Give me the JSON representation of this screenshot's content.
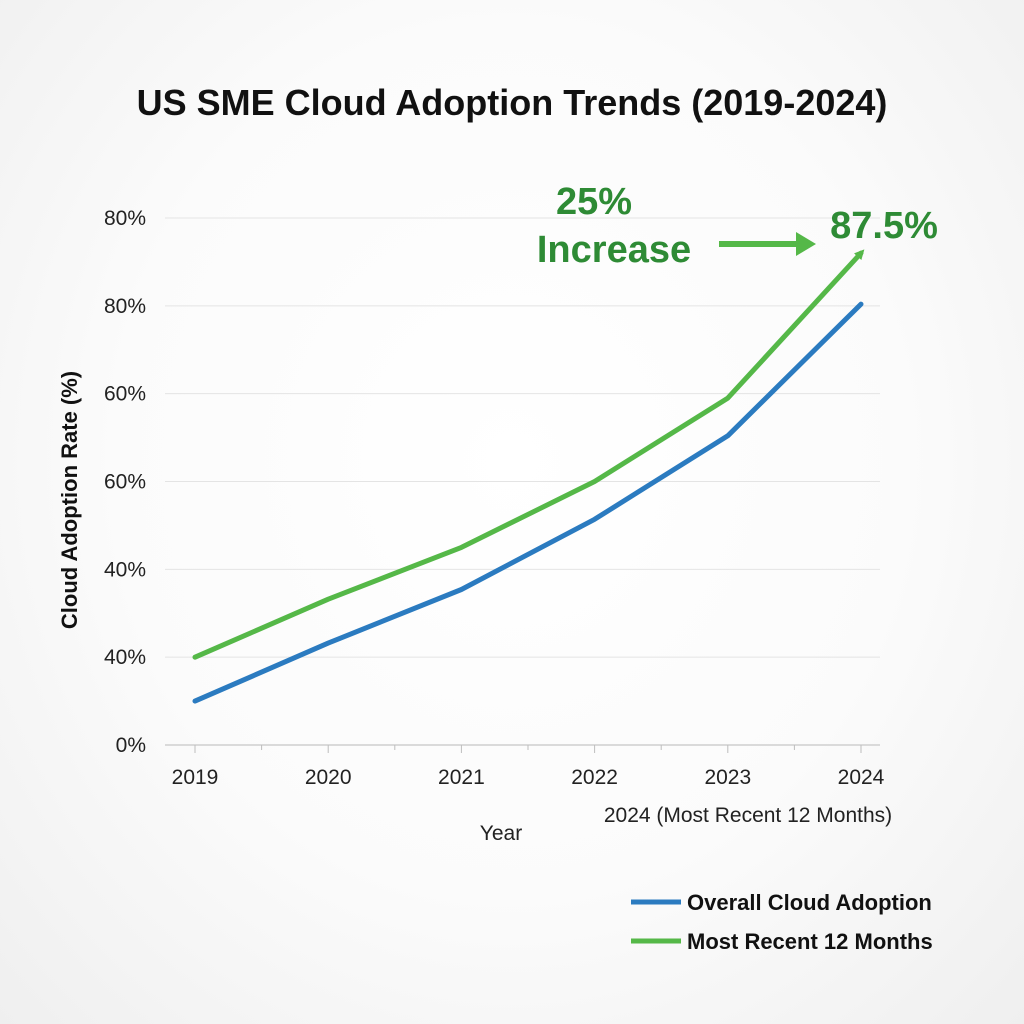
{
  "chart_data": {
    "type": "line",
    "title": "US SME Cloud Adoption Trends (2019-2024)",
    "xlabel": "Year",
    "ylabel": "Cloud Adoption Rate (%)",
    "x": [
      "2019",
      "2020",
      "2021",
      "2022",
      "2023",
      "2024"
    ],
    "x_sublabel": "2024 (Most Recent 12 Months)",
    "y_tick_labels": [
      "0%",
      "40%",
      "40%",
      "60%",
      "60%",
      "80%",
      "80%"
    ],
    "ylim": [
      0,
      6
    ],
    "grid": true,
    "legend_position": "bottom-right",
    "series": [
      {
        "name": "Overall Cloud Adoption",
        "color": "#2b7bc0",
        "values": [
          0.5,
          1.16,
          1.77,
          2.57,
          3.52,
          5.02
        ]
      },
      {
        "name": "Most Recent 12 Months",
        "color": "#55b848",
        "values": [
          1.0,
          1.66,
          2.25,
          3.0,
          3.95,
          5.6
        ]
      }
    ],
    "annotations": {
      "increase_pct": "25%",
      "increase_word": "Increase",
      "peak_label": "87.5%",
      "color": "#2e8b35"
    }
  }
}
